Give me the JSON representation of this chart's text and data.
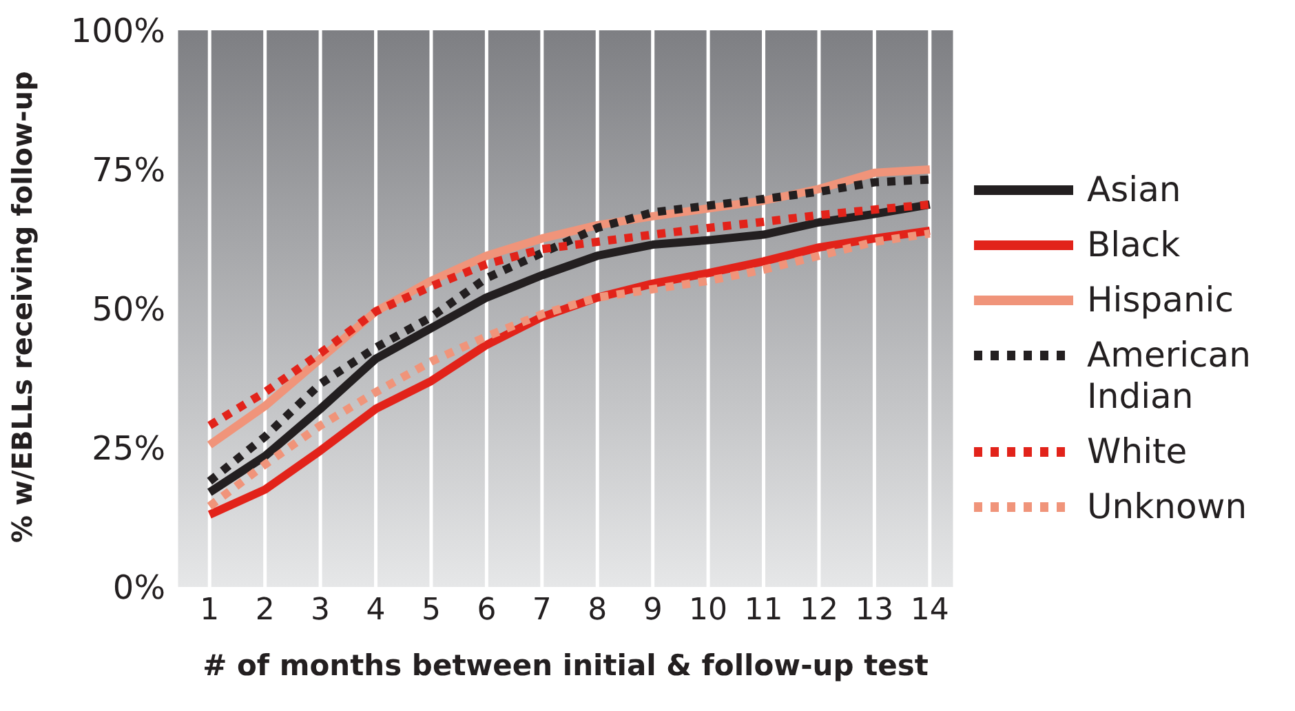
{
  "chart_data": {
    "type": "line",
    "xlabel": "# of months between initial & follow-up test",
    "ylabel": "% w/EBLLs receiving follow-up",
    "x": [
      1,
      2,
      3,
      4,
      5,
      6,
      7,
      8,
      9,
      10,
      11,
      12,
      13,
      14
    ],
    "xlim": [
      0.4,
      14.45
    ],
    "xticks": [
      1,
      2,
      3,
      4,
      5,
      6,
      7,
      8,
      9,
      10,
      11,
      12,
      13,
      14
    ],
    "ylim": [
      0,
      100
    ],
    "yticks": [
      {
        "value": 0,
        "label": "0%"
      },
      {
        "value": 25,
        "label": "25%"
      },
      {
        "value": 50,
        "label": "50%"
      },
      {
        "value": 75,
        "label": "75%"
      },
      {
        "value": 100,
        "label": "100%"
      }
    ],
    "grid": "x",
    "legend": "right",
    "marker": "none",
    "series": [
      {
        "name": "Asian",
        "color": "#231f20",
        "line_style": "solid",
        "values": [
          17,
          23.5,
          32,
          41,
          46.5,
          52,
          56,
          59.5,
          61.5,
          62.3,
          63.3,
          65.5,
          67,
          68.7
        ]
      },
      {
        "name": "Black",
        "color": "#e2231a",
        "line_style": "solid",
        "values": [
          13,
          17.5,
          24.5,
          32,
          37,
          43.5,
          48.5,
          52,
          54.5,
          56.4,
          58.5,
          61,
          62.6,
          64
        ]
      },
      {
        "name": "Hispanic",
        "color": "#f0947a",
        "line_style": "solid",
        "values": [
          25.5,
          32.5,
          41,
          49.5,
          55,
          59.5,
          62.6,
          65,
          66.6,
          68,
          69.4,
          71.5,
          74.4,
          75
        ]
      },
      {
        "name": "American Indian",
        "color": "#231f20",
        "line_style": "dotted",
        "values": [
          19,
          27,
          36.5,
          43,
          48.5,
          55.5,
          60,
          64.5,
          67.3,
          68.5,
          69.7,
          71,
          72.7,
          73.2
        ]
      },
      {
        "name": "White",
        "color": "#e2231a",
        "line_style": "dotted",
        "values": [
          29,
          35,
          42,
          49.5,
          54,
          58,
          60.7,
          62,
          63.3,
          64.5,
          65.6,
          66.8,
          67.8,
          68.7
        ]
      },
      {
        "name": "Unknown",
        "color": "#f0947a",
        "line_style": "dotted",
        "values": [
          14.5,
          22,
          29,
          35,
          40.5,
          45,
          49,
          52,
          53.5,
          55,
          57,
          59.5,
          62,
          63.5
        ]
      }
    ]
  }
}
